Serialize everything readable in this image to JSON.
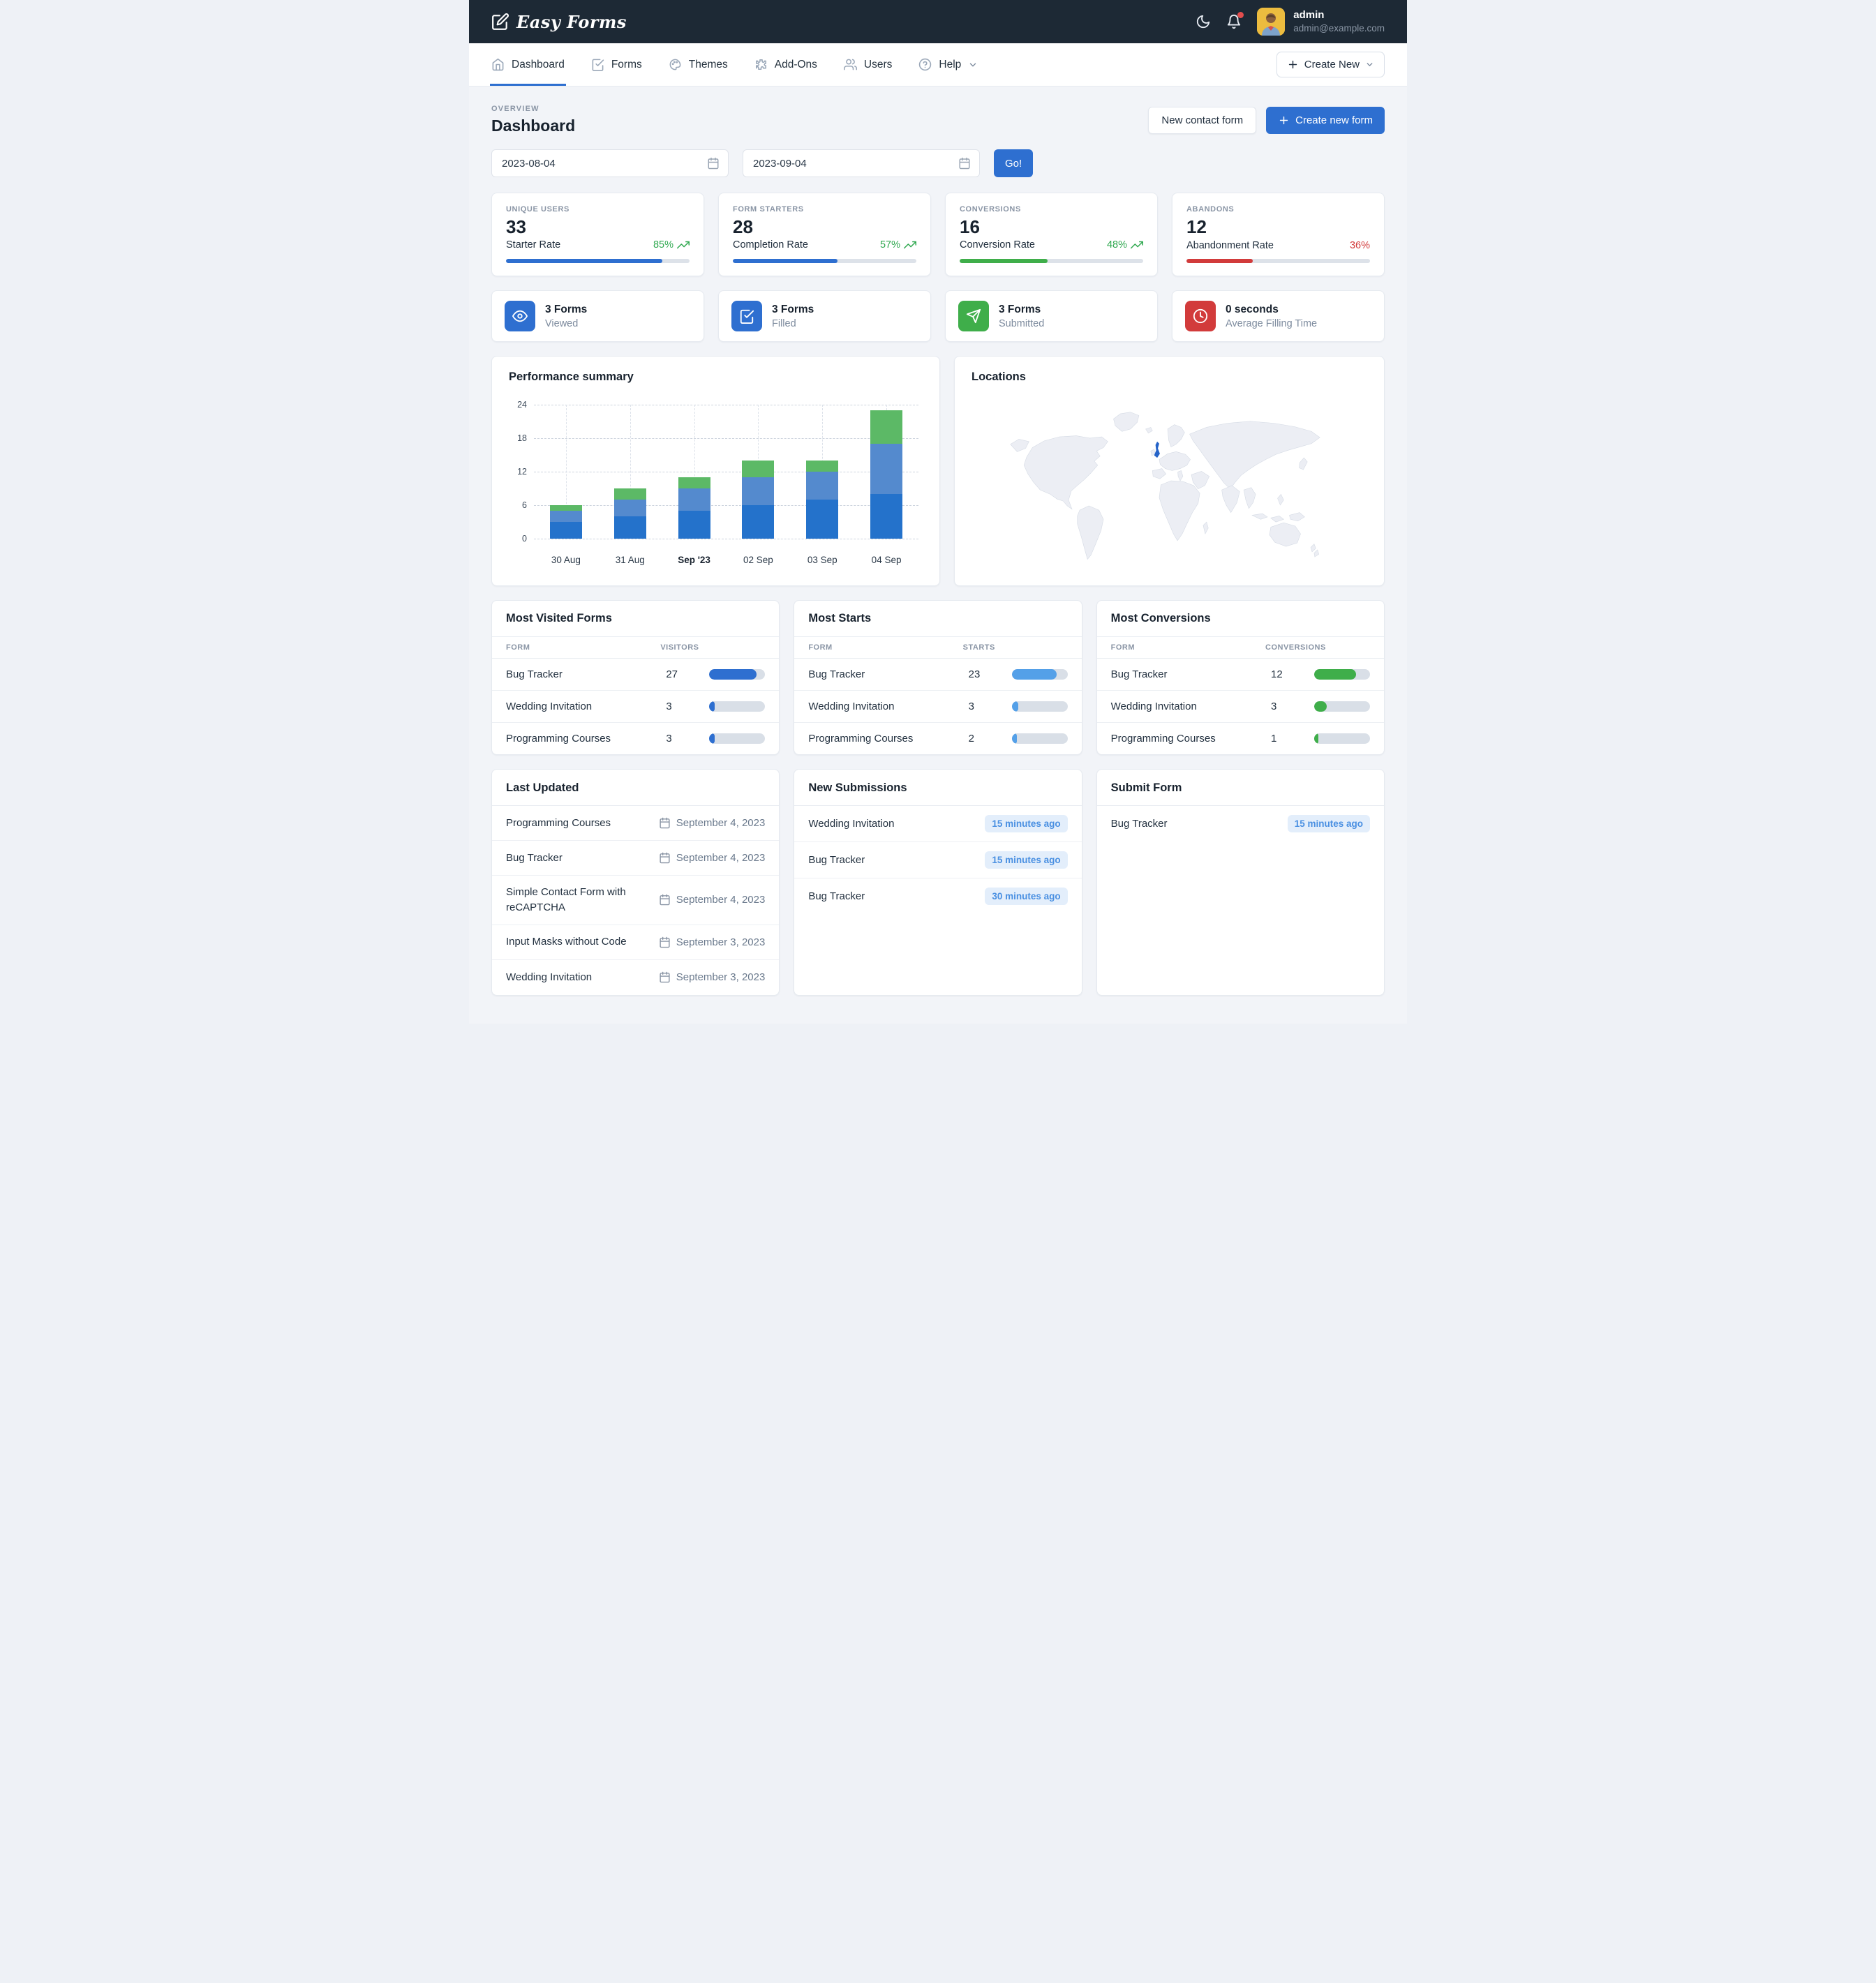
{
  "theme": {
    "accent_blue": "#2e6fd0",
    "green": "#3fae4a",
    "red": "#d23b3b",
    "navbar_bg": "#1d2935",
    "badge_bg": "#e3eefb",
    "badge_text": "#4a90e2"
  },
  "topbar": {
    "brand": "Easy Forms",
    "user": {
      "name": "admin",
      "email": "admin@example.com"
    }
  },
  "nav": {
    "items": [
      {
        "label": "Dashboard",
        "active": true
      },
      {
        "label": "Forms",
        "active": false
      },
      {
        "label": "Themes",
        "active": false
      },
      {
        "label": "Add-Ons",
        "active": false
      },
      {
        "label": "Users",
        "active": false
      },
      {
        "label": "Help",
        "active": false
      }
    ],
    "create_new_label": "Create New"
  },
  "page": {
    "kicker": "OVERVIEW",
    "title": "Dashboard",
    "secondary_button": "New contact form",
    "primary_button": "Create new form"
  },
  "date_filter": {
    "start": "2023-08-04",
    "end": "2023-09-04",
    "go_label": "Go!"
  },
  "stat_cards": [
    {
      "label": "UNIQUE USERS",
      "value": "33",
      "rate_label": "Starter Rate",
      "rate_value": "85%",
      "trend": "up",
      "rate_color": "#2fa84f",
      "bar_pct": 85,
      "bar_color": "#2e6fd0"
    },
    {
      "label": "FORM STARTERS",
      "value": "28",
      "rate_label": "Completion Rate",
      "rate_value": "57%",
      "trend": "up",
      "rate_color": "#2fa84f",
      "bar_pct": 57,
      "bar_color": "#2e6fd0"
    },
    {
      "label": "CONVERSIONS",
      "value": "16",
      "rate_label": "Conversion Rate",
      "rate_value": "48%",
      "trend": "up",
      "rate_color": "#2fa84f",
      "bar_pct": 48,
      "bar_color": "#3fae4a"
    },
    {
      "label": "ABANDONS",
      "value": "12",
      "rate_label": "Abandonment Rate",
      "rate_value": "36%",
      "trend": "none",
      "rate_color": "#d23b3b",
      "bar_pct": 36,
      "bar_color": "#d23b3b"
    }
  ],
  "info_cards": [
    {
      "value": "3 Forms",
      "label": "Viewed",
      "icon": "eye-icon",
      "color": "#2e6fd0"
    },
    {
      "value": "3 Forms",
      "label": "Filled",
      "icon": "check-square-icon",
      "color": "#2e6fd0"
    },
    {
      "value": "3 Forms",
      "label": "Submitted",
      "icon": "send-icon",
      "color": "#3fae4a"
    },
    {
      "value": "0 seconds",
      "label": "Average Filling Time",
      "icon": "clock-icon",
      "color": "#d23b3b"
    }
  ],
  "chart_card": {
    "title": "Performance summary"
  },
  "chart_data": {
    "type": "bar",
    "stacked": true,
    "title": "Performance summary",
    "categories": [
      {
        "label": "30 Aug",
        "bold": false
      },
      {
        "label": "31 Aug",
        "bold": false
      },
      {
        "label": "Sep '23",
        "bold": true
      },
      {
        "label": "02 Sep",
        "bold": false
      },
      {
        "label": "03 Sep",
        "bold": false
      },
      {
        "label": "04 Sep",
        "bold": false
      }
    ],
    "series": [
      {
        "name": "segment-dark-blue",
        "color": "#2472cb",
        "values": [
          3,
          4,
          5,
          6,
          7,
          8
        ]
      },
      {
        "name": "segment-medium-blue",
        "color": "#548ace",
        "values": [
          2,
          3,
          4,
          5,
          5,
          9
        ]
      },
      {
        "name": "segment-green",
        "color": "#5cb966",
        "values": [
          1,
          2,
          2,
          3,
          2,
          6
        ]
      }
    ],
    "totals": [
      6,
      9,
      11,
      14,
      14,
      23
    ],
    "xlabel": "",
    "ylabel": "",
    "ylim": [
      0,
      24
    ],
    "yticks": [
      0,
      6,
      12,
      18,
      24
    ],
    "grid": true,
    "legend": "none"
  },
  "locations_card": {
    "title": "Locations",
    "highlighted_country": "United Kingdom",
    "highlight_color": "#2563c8"
  },
  "rank_tables": [
    {
      "title": "Most Visited Forms",
      "col_form": "FORM",
      "col_value": "VISITORS",
      "bar_color": "#2e6fd0",
      "rows": [
        {
          "name": "Bug Tracker",
          "value": "27",
          "bar_pct": 85
        },
        {
          "name": "Wedding Invitation",
          "value": "3",
          "bar_pct": 10
        },
        {
          "name": "Programming Courses",
          "value": "3",
          "bar_pct": 10
        }
      ]
    },
    {
      "title": "Most Starts",
      "col_form": "FORM",
      "col_value": "STARTS",
      "bar_color": "#54a0e8",
      "rows": [
        {
          "name": "Bug Tracker",
          "value": "23",
          "bar_pct": 80
        },
        {
          "name": "Wedding Invitation",
          "value": "3",
          "bar_pct": 12
        },
        {
          "name": "Programming Courses",
          "value": "2",
          "bar_pct": 9
        }
      ]
    },
    {
      "title": "Most Conversions",
      "col_form": "FORM",
      "col_value": "CONVERSIONS",
      "bar_color": "#3fae4a",
      "rows": [
        {
          "name": "Bug Tracker",
          "value": "12",
          "bar_pct": 75
        },
        {
          "name": "Wedding Invitation",
          "value": "3",
          "bar_pct": 22
        },
        {
          "name": "Programming Courses",
          "value": "1",
          "bar_pct": 8
        }
      ]
    }
  ],
  "last_updated": {
    "title": "Last Updated",
    "rows": [
      {
        "name": "Programming Courses",
        "date": "September 4, 2023"
      },
      {
        "name": "Bug Tracker",
        "date": "September 4, 2023"
      },
      {
        "name": "Simple Contact Form with reCAPTCHA",
        "date": "September 4, 2023"
      },
      {
        "name": "Input Masks without Code",
        "date": "September 3, 2023"
      },
      {
        "name": "Wedding Invitation",
        "date": "September 3, 2023"
      }
    ]
  },
  "new_submissions": {
    "title": "New Submissions",
    "rows": [
      {
        "name": "Wedding Invitation",
        "badge": "15 minutes ago"
      },
      {
        "name": "Bug Tracker",
        "badge": "15 minutes ago"
      },
      {
        "name": "Bug Tracker",
        "badge": "30 minutes ago"
      }
    ]
  },
  "submit_form": {
    "title": "Submit Form",
    "rows": [
      {
        "name": "Bug Tracker",
        "badge": "15 minutes ago"
      }
    ]
  }
}
